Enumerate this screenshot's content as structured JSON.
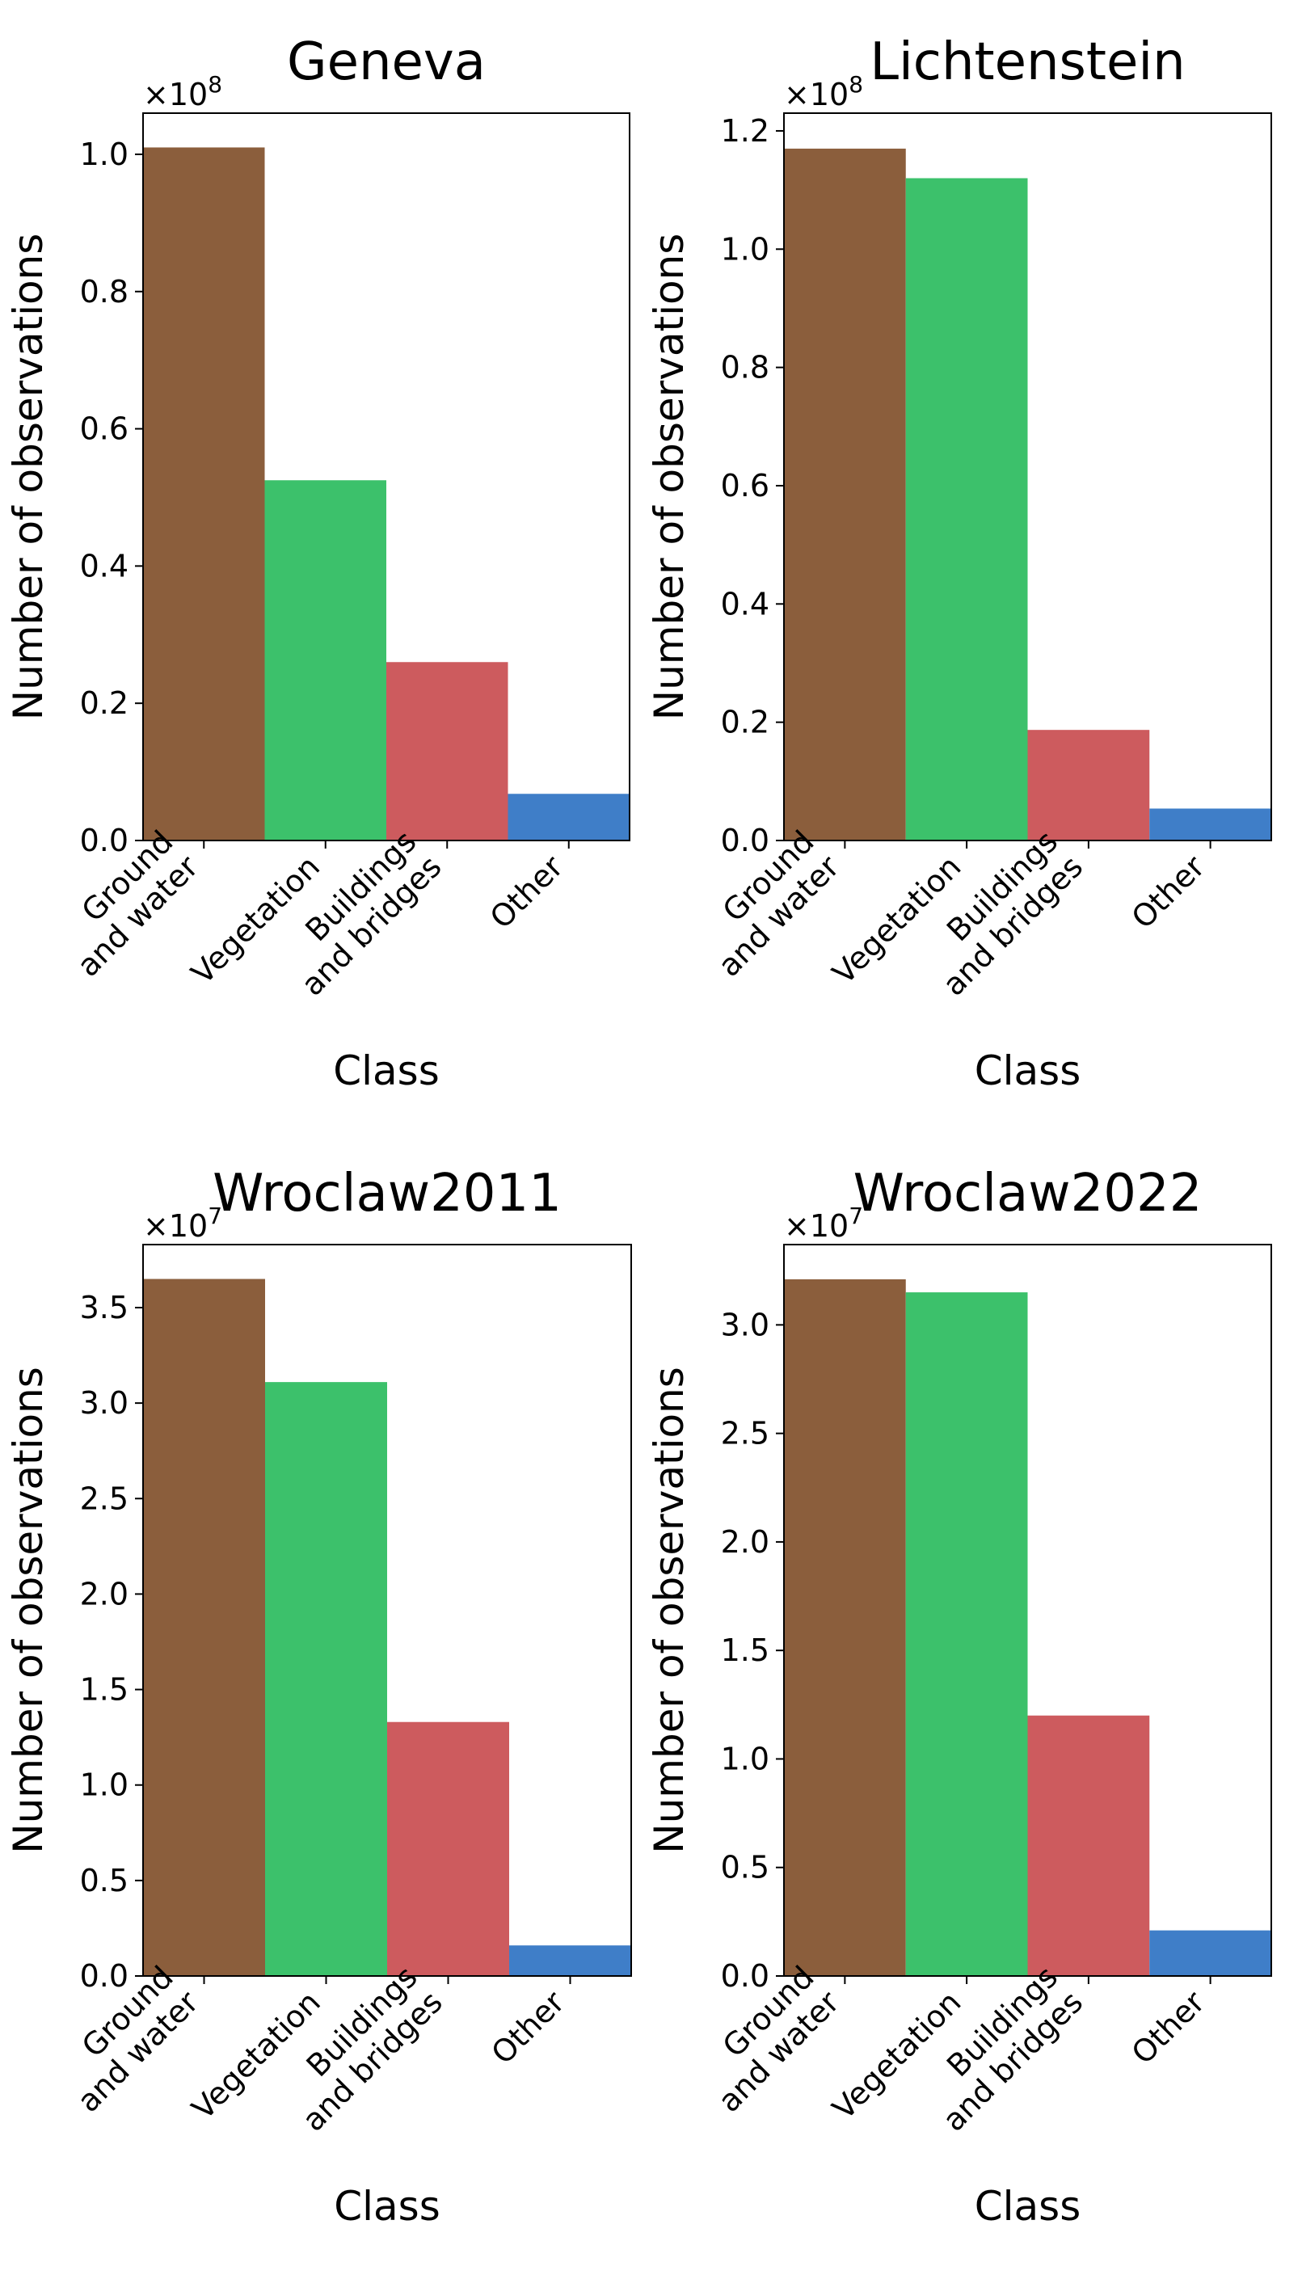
{
  "chart_data": [
    {
      "type": "bar",
      "title": "Geneva",
      "xlabel": "Class",
      "ylabel": "Number of observations",
      "scale_label": "×10^8",
      "scale_base": "×10",
      "scale_exp": "8",
      "categories": [
        [
          "Ground",
          "and water"
        ],
        [
          "Vegetation"
        ],
        [
          "Buildings",
          "and bridges"
        ],
        [
          "Other"
        ]
      ],
      "values": [
        1.01,
        0.525,
        0.26,
        0.068
      ],
      "colors": [
        "#8b5e3c",
        "#3cc16b",
        "#cd5b5e",
        "#3f7ec8"
      ],
      "ylim": [
        0,
        1.06
      ],
      "yticks": [
        0.0,
        0.2,
        0.4,
        0.6,
        0.8,
        1.0
      ],
      "ytick_labels": [
        "0.0",
        "0.2",
        "0.4",
        "0.6",
        "0.8",
        "1.0"
      ]
    },
    {
      "type": "bar",
      "title": "Lichtenstein",
      "xlabel": "Class",
      "ylabel": "Number of observations",
      "scale_label": "×10^8",
      "scale_base": "×10",
      "scale_exp": "8",
      "categories": [
        [
          "Ground",
          "and water"
        ],
        [
          "Vegetation"
        ],
        [
          "Buildings",
          "and bridges"
        ],
        [
          "Other"
        ]
      ],
      "values": [
        1.17,
        1.12,
        0.187,
        0.054
      ],
      "colors": [
        "#8b5e3c",
        "#3cc16b",
        "#cd5b5e",
        "#3f7ec8"
      ],
      "ylim": [
        0,
        1.23
      ],
      "yticks": [
        0.0,
        0.2,
        0.4,
        0.6,
        0.8,
        1.0,
        1.2
      ],
      "ytick_labels": [
        "0.0",
        "0.2",
        "0.4",
        "0.6",
        "0.8",
        "1.0",
        "1.2"
      ]
    },
    {
      "type": "bar",
      "title": "Wroclaw2011",
      "xlabel": "Class",
      "ylabel": "Number of observations",
      "scale_label": "×10^7",
      "scale_base": "×10",
      "scale_exp": "7",
      "categories": [
        [
          "Ground",
          "and water"
        ],
        [
          "Vegetation"
        ],
        [
          "Buildings",
          "and bridges"
        ],
        [
          "Other"
        ]
      ],
      "values": [
        3.65,
        3.11,
        1.33,
        0.16
      ],
      "colors": [
        "#8b5e3c",
        "#3cc16b",
        "#cd5b5e",
        "#3f7ec8"
      ],
      "ylim": [
        0,
        3.83
      ],
      "yticks": [
        0.0,
        0.5,
        1.0,
        1.5,
        2.0,
        2.5,
        3.0,
        3.5
      ],
      "ytick_labels": [
        "0.0",
        "0.5",
        "1.0",
        "1.5",
        "2.0",
        "2.5",
        "3.0",
        "3.5"
      ]
    },
    {
      "type": "bar",
      "title": "Wroclaw2022",
      "xlabel": "Class",
      "ylabel": "Number of observations",
      "scale_label": "×10^7",
      "scale_base": "×10",
      "scale_exp": "7",
      "categories": [
        [
          "Ground",
          "and water"
        ],
        [
          "Vegetation"
        ],
        [
          "Buildings",
          "and bridges"
        ],
        [
          "Other"
        ]
      ],
      "values": [
        3.21,
        3.15,
        1.2,
        0.21
      ],
      "colors": [
        "#8b5e3c",
        "#3cc16b",
        "#cd5b5e",
        "#3f7ec8"
      ],
      "ylim": [
        0,
        3.37
      ],
      "yticks": [
        0.0,
        0.5,
        1.0,
        1.5,
        2.0,
        2.5,
        3.0
      ],
      "ytick_labels": [
        "0.0",
        "0.5",
        "1.0",
        "1.5",
        "2.0",
        "2.5",
        "3.0"
      ]
    }
  ]
}
